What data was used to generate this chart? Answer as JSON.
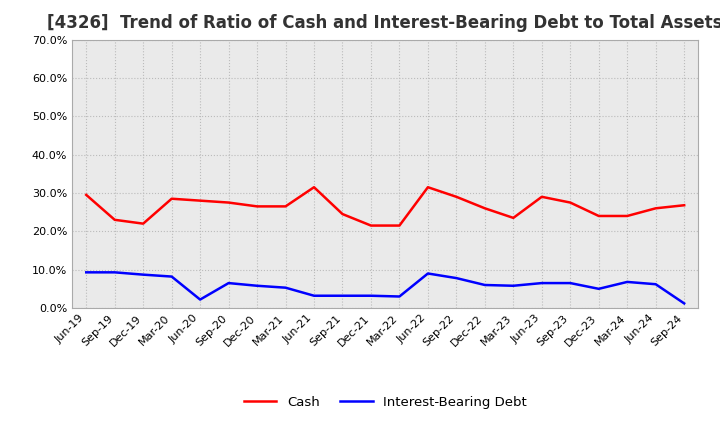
{
  "title": "[4326]  Trend of Ratio of Cash and Interest-Bearing Debt to Total Assets",
  "x_labels": [
    "Jun-19",
    "Sep-19",
    "Dec-19",
    "Mar-20",
    "Jun-20",
    "Sep-20",
    "Dec-20",
    "Mar-21",
    "Jun-21",
    "Sep-21",
    "Dec-21",
    "Mar-22",
    "Jun-22",
    "Sep-22",
    "Dec-22",
    "Mar-23",
    "Jun-23",
    "Sep-23",
    "Dec-23",
    "Mar-24",
    "Jun-24",
    "Sep-24"
  ],
  "cash": [
    0.295,
    0.23,
    0.22,
    0.285,
    0.28,
    0.275,
    0.265,
    0.265,
    0.315,
    0.245,
    0.215,
    0.215,
    0.315,
    0.29,
    0.26,
    0.235,
    0.29,
    0.275,
    0.24,
    0.24,
    0.26,
    0.268
  ],
  "interest_bearing_debt": [
    0.093,
    0.093,
    0.087,
    0.082,
    0.022,
    0.065,
    0.058,
    0.053,
    0.032,
    0.032,
    0.032,
    0.03,
    0.09,
    0.078,
    0.06,
    0.058,
    0.065,
    0.065,
    0.05,
    0.068,
    0.062,
    0.012
  ],
  "cash_color": "#ff0000",
  "debt_color": "#0000ff",
  "ylim": [
    0.0,
    0.7
  ],
  "yticks": [
    0.0,
    0.1,
    0.2,
    0.3,
    0.4,
    0.5,
    0.6,
    0.7
  ],
  "grid_color": "#bbbbbb",
  "background_color": "#ffffff",
  "plot_bg_color": "#eaeaea",
  "title_fontsize": 12,
  "tick_fontsize": 8,
  "legend_fontsize": 9.5
}
